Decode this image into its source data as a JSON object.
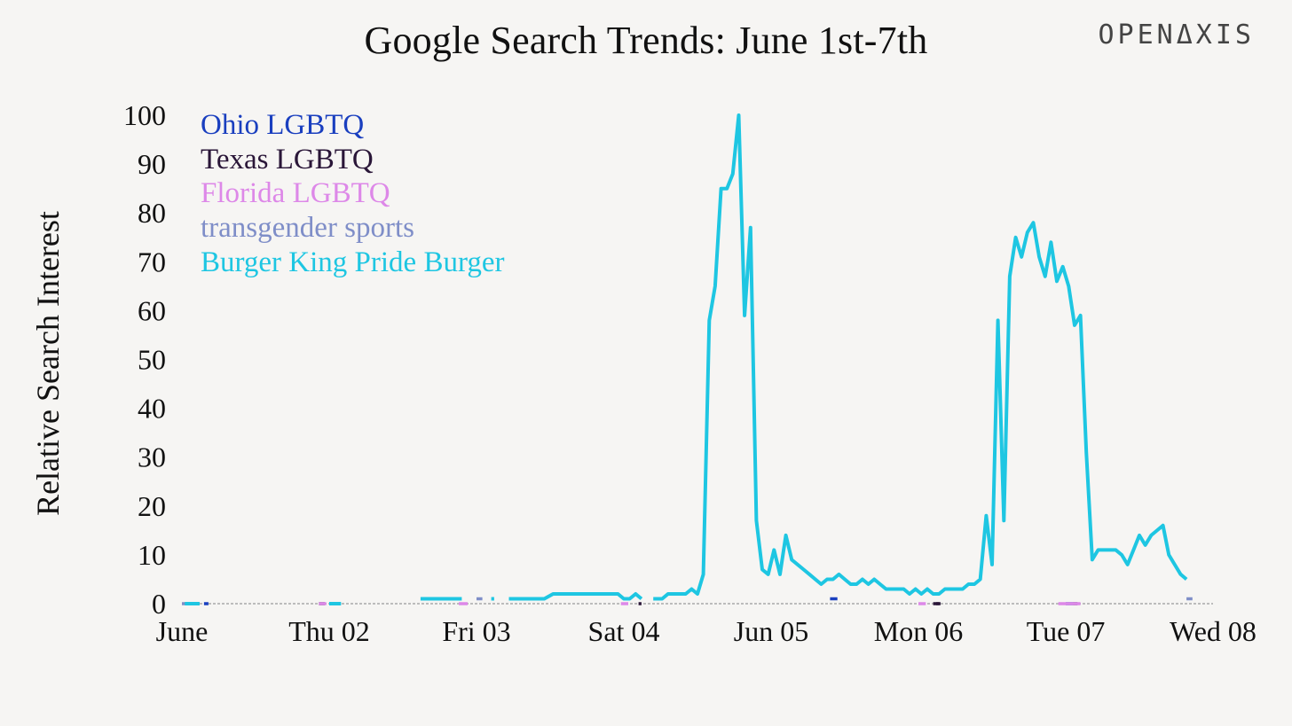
{
  "title": "Google Search Trends: June 1st-7th",
  "brand": "OPENΔXIS",
  "chart_data": {
    "type": "line",
    "title": "Google Search Trends: June 1st-7th",
    "xlabel": "",
    "ylabel": "Relative Search Interest",
    "ylim": [
      0,
      100
    ],
    "xlim": [
      0,
      7
    ],
    "x_unit": "days since June 01 00:00",
    "y_ticks": [
      0,
      10,
      20,
      30,
      40,
      50,
      60,
      70,
      80,
      90,
      100
    ],
    "x_ticks": [
      {
        "x": 0,
        "label": "June"
      },
      {
        "x": 1,
        "label": "Thu 02"
      },
      {
        "x": 2,
        "label": "Fri 03"
      },
      {
        "x": 3,
        "label": "Sat 04"
      },
      {
        "x": 4,
        "label": "Jun 05"
      },
      {
        "x": 5,
        "label": "Mon 06"
      },
      {
        "x": 6,
        "label": "Tue 07"
      },
      {
        "x": 7,
        "label": "Wed 08"
      }
    ],
    "grid": false,
    "legend_position": "top-left",
    "series": [
      {
        "name": "Ohio LGBTQ",
        "color": "#1a3fbf",
        "segments": [
          [
            [
              0.15,
              0
            ],
            [
              0.18,
              0
            ]
          ],
          [
            [
              4.4,
              1
            ],
            [
              4.45,
              1
            ]
          ],
          [
            [
              6.0,
              0
            ],
            [
              6.05,
              0
            ]
          ]
        ]
      },
      {
        "name": "Texas LGBTQ",
        "color": "#2a1638",
        "segments": [
          [
            [
              0.93,
              0
            ],
            [
              0.97,
              0
            ]
          ],
          [
            [
              3.1,
              0
            ],
            [
              3.12,
              0
            ]
          ],
          [
            [
              5.12,
              0
            ],
            [
              5.14,
              0
            ]
          ],
          [
            [
              5.1,
              0
            ],
            [
              5.15,
              0
            ]
          ],
          [
            [
              6.05,
              0
            ],
            [
              6.08,
              0
            ]
          ]
        ]
      },
      {
        "name": "Florida LGBTQ",
        "color": "#dd88e8",
        "segments": [
          [
            [
              0.93,
              0
            ],
            [
              0.98,
              0
            ]
          ],
          [
            [
              1.88,
              0
            ],
            [
              1.94,
              0
            ]
          ],
          [
            [
              2.98,
              0
            ],
            [
              3.03,
              0
            ]
          ],
          [
            [
              5.0,
              0
            ],
            [
              5.05,
              0
            ]
          ],
          [
            [
              5.95,
              0
            ],
            [
              6.1,
              0
            ]
          ]
        ]
      },
      {
        "name": "transgender sports",
        "color": "#7f8ec8",
        "segments": [
          [
            [
              0.0,
              0
            ],
            [
              0.12,
              0
            ]
          ],
          [
            [
              2.0,
              1
            ],
            [
              2.04,
              1
            ]
          ],
          [
            [
              6.82,
              1
            ],
            [
              6.86,
              1
            ]
          ]
        ]
      },
      {
        "name": "Burger King Pride Burger",
        "color": "#1ec6e2",
        "segments": [
          [
            [
              0.02,
              0
            ],
            [
              0.12,
              0
            ]
          ],
          [
            [
              1.0,
              0
            ],
            [
              1.08,
              0
            ]
          ],
          [
            [
              1.62,
              1
            ],
            [
              1.9,
              1
            ]
          ],
          [
            [
              2.1,
              1
            ],
            [
              2.12,
              1
            ]
          ],
          [
            [
              2.22,
              1
            ],
            [
              2.46,
              1
            ],
            [
              2.52,
              2
            ],
            [
              2.96,
              2
            ],
            [
              3.0,
              1
            ],
            [
              3.04,
              1
            ],
            [
              3.08,
              2
            ],
            [
              3.12,
              1
            ]
          ],
          [
            [
              3.2,
              1
            ],
            [
              3.26,
              1
            ],
            [
              3.3,
              2
            ],
            [
              3.42,
              2
            ],
            [
              3.46,
              3
            ],
            [
              3.5,
              2
            ],
            [
              3.54,
              6
            ],
            [
              3.58,
              58
            ],
            [
              3.62,
              65
            ],
            [
              3.66,
              85
            ],
            [
              3.7,
              85
            ],
            [
              3.74,
              88
            ],
            [
              3.78,
              100
            ],
            [
              3.82,
              59
            ],
            [
              3.86,
              77
            ],
            [
              3.9,
              17
            ],
            [
              3.94,
              7
            ],
            [
              3.98,
              6
            ],
            [
              4.02,
              11
            ],
            [
              4.06,
              6
            ],
            [
              4.1,
              14
            ],
            [
              4.14,
              9
            ],
            [
              4.18,
              8
            ],
            [
              4.22,
              7
            ],
            [
              4.26,
              6
            ],
            [
              4.3,
              5
            ],
            [
              4.34,
              4
            ],
            [
              4.38,
              5
            ],
            [
              4.42,
              5
            ],
            [
              4.46,
              6
            ],
            [
              4.5,
              5
            ],
            [
              4.54,
              4
            ],
            [
              4.58,
              4
            ],
            [
              4.62,
              5
            ],
            [
              4.66,
              4
            ],
            [
              4.7,
              5
            ],
            [
              4.74,
              4
            ],
            [
              4.78,
              3
            ],
            [
              4.82,
              3
            ],
            [
              4.86,
              3
            ],
            [
              4.9,
              3
            ],
            [
              4.94,
              2
            ],
            [
              4.98,
              3
            ],
            [
              5.02,
              2
            ],
            [
              5.06,
              3
            ],
            [
              5.1,
              2
            ],
            [
              5.14,
              2
            ],
            [
              5.18,
              3
            ],
            [
              5.22,
              3
            ],
            [
              5.26,
              3
            ],
            [
              5.3,
              3
            ],
            [
              5.34,
              4
            ],
            [
              5.38,
              4
            ],
            [
              5.42,
              5
            ],
            [
              5.46,
              18
            ],
            [
              5.5,
              8
            ],
            [
              5.54,
              58
            ],
            [
              5.58,
              17
            ],
            [
              5.62,
              67
            ],
            [
              5.66,
              75
            ],
            [
              5.7,
              71
            ],
            [
              5.74,
              76
            ],
            [
              5.78,
              78
            ],
            [
              5.82,
              71
            ],
            [
              5.86,
              67
            ],
            [
              5.9,
              74
            ],
            [
              5.94,
              66
            ],
            [
              5.98,
              69
            ],
            [
              6.02,
              65
            ],
            [
              6.06,
              57
            ],
            [
              6.1,
              59
            ],
            [
              6.14,
              31
            ],
            [
              6.18,
              9
            ],
            [
              6.22,
              11
            ],
            [
              6.26,
              11
            ],
            [
              6.3,
              11
            ],
            [
              6.34,
              11
            ],
            [
              6.38,
              10
            ],
            [
              6.42,
              8
            ],
            [
              6.46,
              11
            ],
            [
              6.5,
              14
            ],
            [
              6.54,
              12
            ],
            [
              6.58,
              14
            ],
            [
              6.62,
              15
            ],
            [
              6.66,
              16
            ],
            [
              6.7,
              10
            ],
            [
              6.74,
              8
            ],
            [
              6.78,
              6
            ],
            [
              6.82,
              5
            ]
          ]
        ]
      }
    ]
  }
}
